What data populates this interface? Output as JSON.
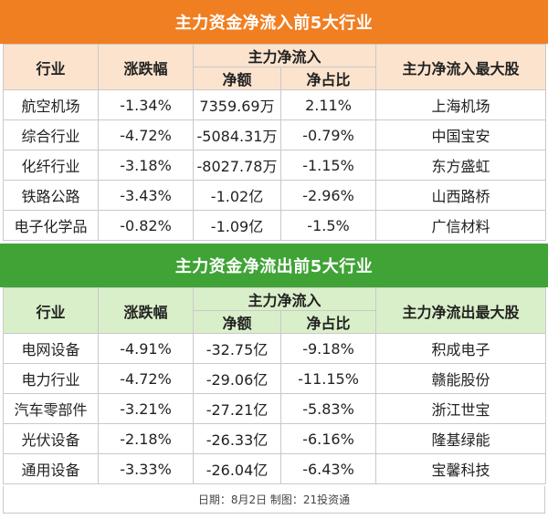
{
  "inflow": {
    "title": "主力资金净流入前5大行业",
    "headers": {
      "industry": "行业",
      "change": "涨跌幅",
      "flow_group": "主力净流入",
      "net_amount": "净额",
      "net_ratio": "净占比",
      "top_stock": "主力净流入最大股"
    },
    "rows": [
      {
        "industry": "航空机场",
        "change": "-1.34%",
        "net_amount": "7359.69万",
        "net_ratio": "2.11%",
        "top_stock": "上海机场"
      },
      {
        "industry": "综合行业",
        "change": "-4.72%",
        "net_amount": "-5084.31万",
        "net_ratio": "-0.79%",
        "top_stock": "中国宝安"
      },
      {
        "industry": "化纤行业",
        "change": "-3.18%",
        "net_amount": "-8027.78万",
        "net_ratio": "-1.15%",
        "top_stock": "东方盛虹"
      },
      {
        "industry": "铁路公路",
        "change": "-3.43%",
        "net_amount": "-1.02亿",
        "net_ratio": "-2.96%",
        "top_stock": "山西路桥"
      },
      {
        "industry": "电子化学品",
        "change": "-0.82%",
        "net_amount": "-1.09亿",
        "net_ratio": "-1.5%",
        "top_stock": "广信材料"
      }
    ]
  },
  "outflow": {
    "title": "主力资金净流出前5大行业",
    "headers": {
      "industry": "行业",
      "change": "涨跌幅",
      "flow_group": "主力净流入",
      "net_amount": "净额",
      "net_ratio": "净占比",
      "top_stock": "主力净流出最大股"
    },
    "rows": [
      {
        "industry": "电网设备",
        "change": "-4.91%",
        "net_amount": "-32.75亿",
        "net_ratio": "-9.18%",
        "top_stock": "积成电子"
      },
      {
        "industry": "电力行业",
        "change": "-4.72%",
        "net_amount": "-29.06亿",
        "net_ratio": "-11.15%",
        "top_stock": "赣能股份"
      },
      {
        "industry": "汽车零部件",
        "change": "-3.21%",
        "net_amount": "-27.21亿",
        "net_ratio": "-5.83%",
        "top_stock": "浙江世宝"
      },
      {
        "industry": "光伏设备",
        "change": "-2.18%",
        "net_amount": "-26.33亿",
        "net_ratio": "-6.16%",
        "top_stock": "隆基绿能"
      },
      {
        "industry": "通用设备",
        "change": "-3.33%",
        "net_amount": "-26.04亿",
        "net_ratio": "-6.43%",
        "top_stock": "宝馨科技"
      }
    ]
  },
  "footer": "日期：8月2日 制图：21投资通",
  "colors": {
    "inflow_band": "#f07f22",
    "inflow_header": "#fbe3ce",
    "outflow_band": "#3fa335",
    "outflow_header": "#d9efc9"
  }
}
